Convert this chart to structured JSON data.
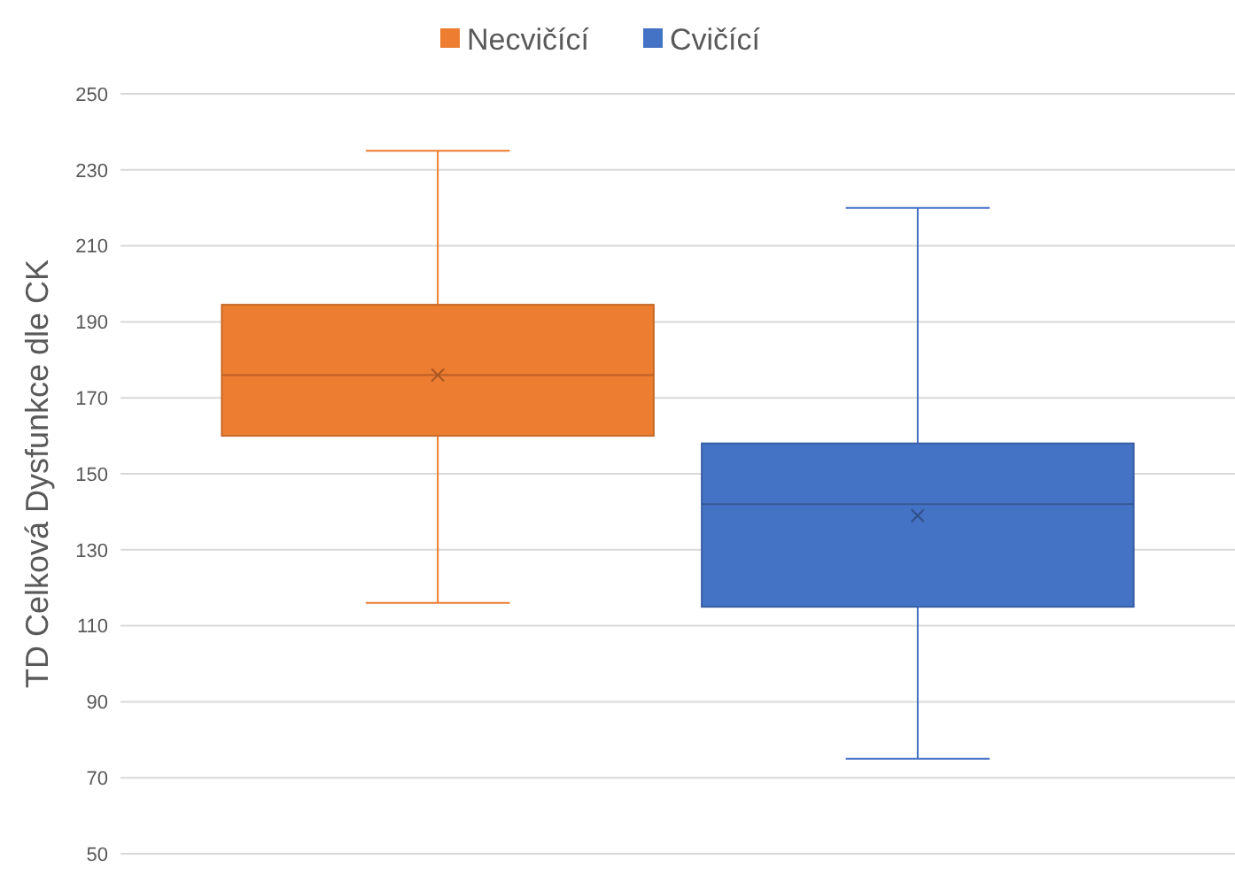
{
  "chart_data": {
    "type": "box",
    "ylabel": "TD Celková Dysfunkce dle CK",
    "categories": [
      null
    ],
    "ylim": [
      50,
      250
    ],
    "yticks": [
      50,
      70,
      90,
      110,
      130,
      150,
      170,
      190,
      210,
      230,
      250
    ],
    "grid": "y",
    "legend": "top",
    "marker": "cross",
    "series": [
      {
        "name": "Necvičící",
        "color": "#ed7d31",
        "boxes": [
          {
            "low": 116,
            "q1": 160,
            "median": 176,
            "q3": 194.5,
            "high": 235,
            "mean": 176
          }
        ]
      },
      {
        "name": "Cvičící",
        "color": "#4472c4",
        "boxes": [
          {
            "low": 75,
            "q1": 115,
            "median": 142,
            "q3": 158,
            "high": 220,
            "mean": 139
          }
        ]
      }
    ]
  }
}
